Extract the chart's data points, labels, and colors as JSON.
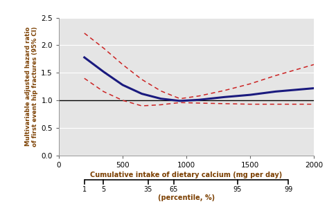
{
  "title": "",
  "xlabel": "Cumulative intake of dietary calcium (mg per day)",
  "ylabel": "Multivariable adjusted hazard ratio\nof first event hip fractures (95% CI)",
  "bg_color": "#e5e5e5",
  "xlim": [
    0,
    2000
  ],
  "ylim": [
    0,
    2.5
  ],
  "yticks": [
    0,
    0.5,
    1.0,
    1.5,
    2.0,
    2.5
  ],
  "xticks": [
    0,
    500,
    1000,
    1500,
    2000
  ],
  "reference_y": 1.0,
  "main_color": "#1a1a7e",
  "ci_color": "#cc2222",
  "main_x": [
    200,
    350,
    500,
    650,
    800,
    950,
    1100,
    1300,
    1500,
    1700,
    2000
  ],
  "main_y": [
    1.78,
    1.52,
    1.28,
    1.12,
    1.03,
    0.99,
    1.01,
    1.06,
    1.1,
    1.16,
    1.22
  ],
  "upper_ci_x": [
    200,
    350,
    500,
    650,
    800,
    950,
    1100,
    1300,
    1500,
    1700,
    2000
  ],
  "upper_ci_y": [
    2.22,
    1.95,
    1.65,
    1.38,
    1.17,
    1.03,
    1.08,
    1.18,
    1.3,
    1.45,
    1.65
  ],
  "lower_ci_x": [
    200,
    350,
    500,
    650,
    800,
    950,
    1100,
    1300,
    1500,
    1700,
    2000
  ],
  "lower_ci_y": [
    1.4,
    1.16,
    1.0,
    0.9,
    0.92,
    0.96,
    0.95,
    0.94,
    0.93,
    0.93,
    0.93
  ],
  "percentile_x_mg": [
    200,
    350,
    700,
    900,
    1400,
    1800
  ],
  "percentile_labels": [
    "1",
    "5",
    "35",
    "65",
    "95",
    "99"
  ],
  "percentile_label_text": "(percentile, %)",
  "label_color": "#7b3f00"
}
